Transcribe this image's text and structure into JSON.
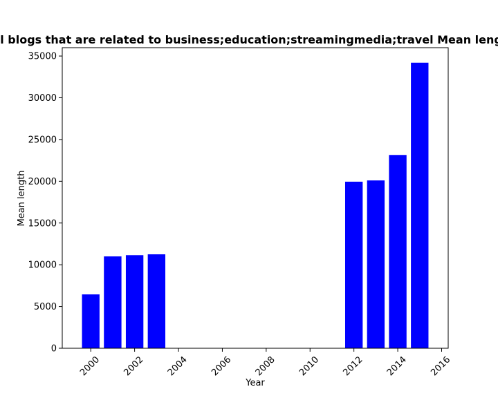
{
  "chart_data": {
    "type": "bar",
    "title": "Mean length of all blogs that are related to business;education;streamingmedia;travel Mean length in private blogs",
    "xlabel": "Year",
    "ylabel": "Mean length",
    "bar_color": "#0000ff",
    "x": [
      2000,
      2001,
      2002,
      2003,
      2012,
      2013,
      2014,
      2015
    ],
    "values": [
      6450,
      11000,
      11150,
      11250,
      19950,
      20100,
      23150,
      34200
    ],
    "xlim": [
      1998.7,
      2016.3
    ],
    "ylim": [
      0,
      36000
    ],
    "xticks": [
      2000,
      2002,
      2004,
      2006,
      2008,
      2010,
      2012,
      2014,
      2016
    ],
    "yticks": [
      0,
      5000,
      10000,
      15000,
      20000,
      25000,
      30000,
      35000
    ],
    "grid": false,
    "legend": "none"
  }
}
